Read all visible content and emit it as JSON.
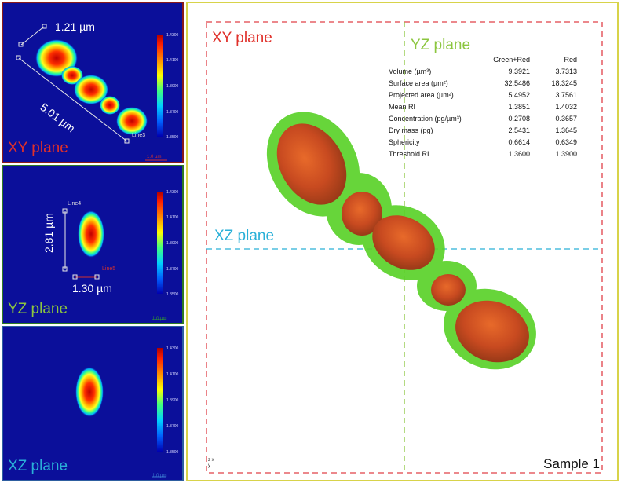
{
  "xy_panel": {
    "plane_label": "XY plane",
    "length_label": "5.01 µm",
    "width_label": "1.21 µm",
    "line_label": "Line3",
    "scale_label": "1.0 µm"
  },
  "yz_panel": {
    "plane_label": "YZ plane",
    "height_label": "2.81 µm",
    "width_label": "1.30 µm",
    "line_top": "Line4",
    "line_bottom": "Line5",
    "scale_label": "1.0 µm"
  },
  "xz_panel": {
    "plane_label": "XZ plane",
    "scale_label": "1.0 µm"
  },
  "colorbar": {
    "ticks": [
      "1.4300",
      "1.4100",
      "1.3900",
      "1.3700",
      "1.3500"
    ]
  },
  "main_view": {
    "xy_label": "XY plane",
    "yz_label": "YZ plane",
    "xz_label": "XZ plane",
    "sample_label": "Sample 1",
    "axis_label": "z x\ny"
  },
  "stats": {
    "headers": [
      "",
      "Green+Red",
      "Red"
    ],
    "rows": [
      [
        "Volume (µm³)",
        "9.3921",
        "3.7313"
      ],
      [
        "Surface area (µm²)",
        "32.5486",
        "18.3245"
      ],
      [
        "Projected area (µm²)",
        "5.4952",
        "3.7561"
      ],
      [
        "Mean RI",
        "1.3851",
        "1.4032"
      ],
      [
        "Concentration (pg/µm³)",
        "0.2708",
        "0.3657"
      ],
      [
        "Dry mass (pg)",
        "2.5431",
        "1.3645"
      ],
      [
        "Sphericity",
        "0.6614",
        "0.6349"
      ],
      [
        "Threshold RI",
        "1.3600",
        "1.3900"
      ]
    ]
  },
  "colors": {
    "xy_accent": "#e0302a",
    "yz_accent": "#8cc63f",
    "xz_accent": "#2ab0d8",
    "panel_bg": "#0b0f9a"
  }
}
